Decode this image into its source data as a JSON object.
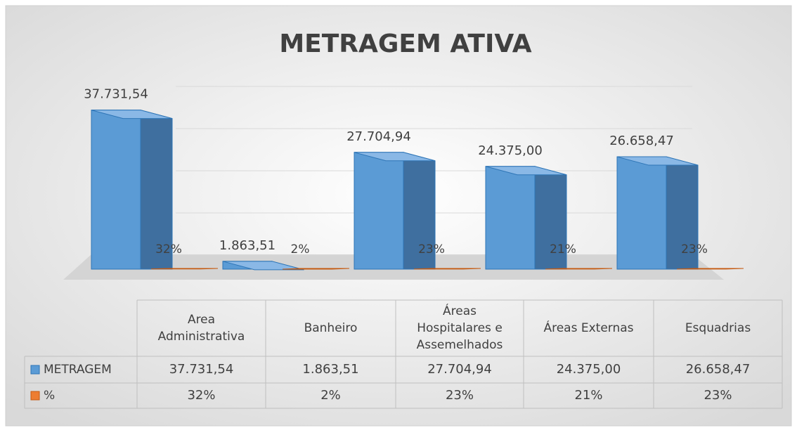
{
  "chart_data": {
    "type": "bar3d",
    "title": "METRAGEM ATIVA",
    "categories": [
      "Area Administrativa",
      "Banheiro",
      "Áreas Hospitalares e Assemelhados",
      "Áreas Externas",
      "Esquadrias"
    ],
    "series": [
      {
        "name": "METRAGEM",
        "color": "#5b9bd5",
        "values": [
          37731.54,
          1863.51,
          27704.94,
          24375.0,
          26658.47
        ],
        "value_labels": [
          "37.731,54",
          "1.863,51",
          "27.704,94",
          "24.375,00",
          "26.658,47"
        ]
      },
      {
        "name": "%",
        "color": "#ed7d31",
        "values": [
          32,
          2,
          23,
          21,
          23
        ],
        "value_labels": [
          "32%",
          "2%",
          "23%",
          "21%",
          "23%"
        ]
      }
    ],
    "ylim": [
      0,
      40000
    ],
    "yticks": [
      0,
      10000,
      20000,
      30000,
      40000
    ],
    "grid": true
  }
}
